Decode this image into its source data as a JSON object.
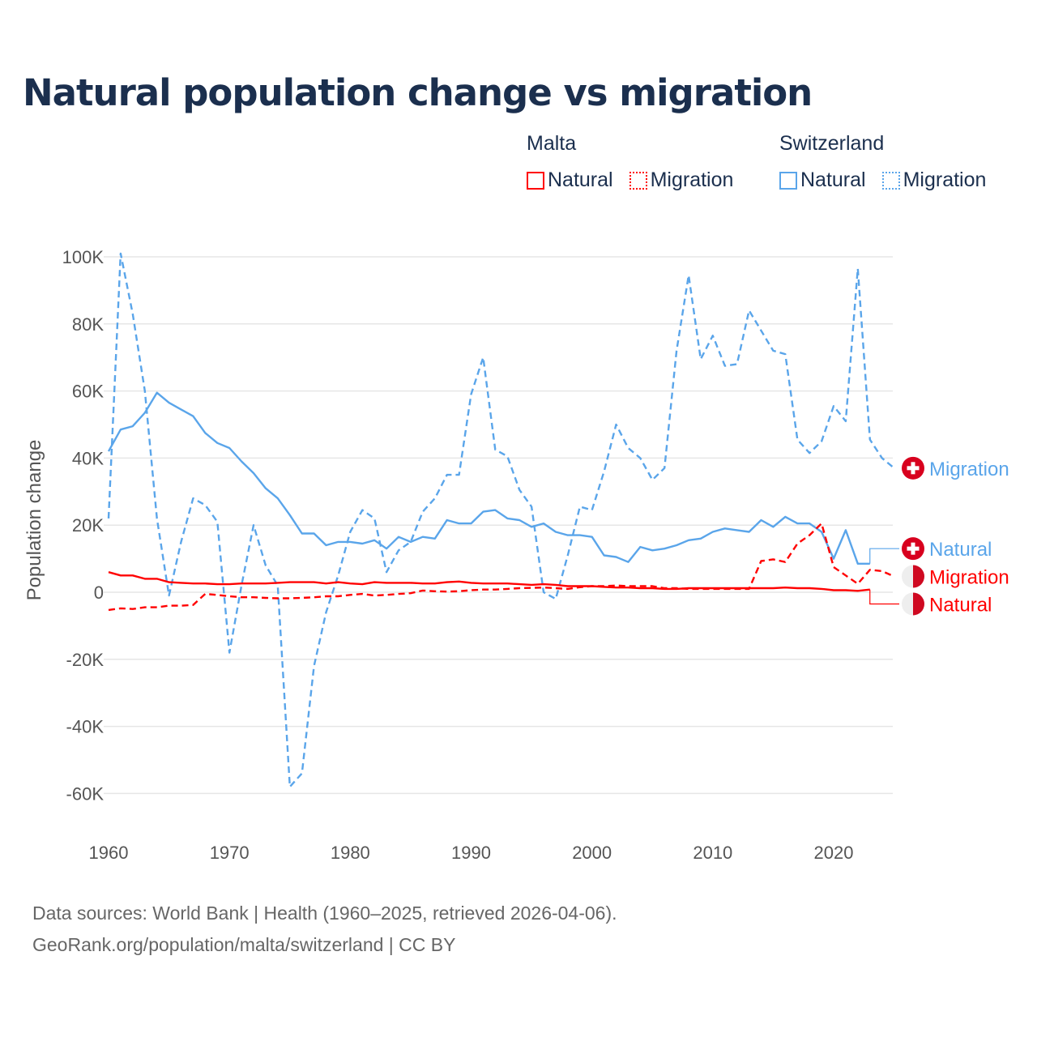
{
  "chart_data": {
    "type": "line",
    "title": "Natural population change vs migration",
    "xlabel": "",
    "ylabel": "Population change",
    "xlim": [
      1960,
      2025
    ],
    "ylim": [
      -70000,
      100000
    ],
    "x_ticks": [
      "1960",
      "1970",
      "1980",
      "1990",
      "2000",
      "2010",
      "2020"
    ],
    "y_ticks": [
      {
        "v": 100000,
        "label": "100K"
      },
      {
        "v": 80000,
        "label": "80K"
      },
      {
        "v": 60000,
        "label": "60K"
      },
      {
        "v": 40000,
        "label": "40K"
      },
      {
        "v": 20000,
        "label": "20K"
      },
      {
        "v": 0,
        "label": "0"
      },
      {
        "v": -20000,
        "label": "-20K"
      },
      {
        "v": -40000,
        "label": "-40K"
      },
      {
        "v": -60000,
        "label": "-60K"
      }
    ],
    "grid": true,
    "legend_placement": "top-right",
    "start_year": 1960,
    "series": [
      {
        "name": "Switzerland Migration",
        "country": "Switzerland",
        "kind": "Migration",
        "color": "#5aa5ea",
        "dashed": true,
        "end_label": "Migration",
        "label_value": 37000,
        "values": [
          22000,
          101000,
          83000,
          60000,
          22000,
          -1000,
          15000,
          28000,
          26000,
          21000,
          -18000,
          2000,
          20000,
          8000,
          2000,
          -58000,
          -54000,
          -22000,
          -6000,
          5000,
          18000,
          24500,
          22000,
          6000,
          12500,
          15000,
          24000,
          28000,
          35000,
          35000,
          59000,
          70000,
          42500,
          40500,
          30500,
          25500,
          0,
          -2000,
          11000,
          25500,
          24500,
          36000,
          50000,
          43000,
          40000,
          33500,
          37000,
          72000,
          94500,
          69500,
          76500,
          67500,
          68000,
          84000,
          78000,
          72000,
          71000,
          45500,
          41500,
          45000,
          55500,
          51000,
          96500,
          45500,
          40000,
          37000
        ]
      },
      {
        "name": "Switzerland Natural",
        "country": "Switzerland",
        "kind": "Natural",
        "color": "#5aa5ea",
        "dashed": false,
        "end_label": "Natural",
        "label_value": 13000,
        "values": [
          42000,
          48500,
          49500,
          53500,
          59500,
          56500,
          54500,
          52500,
          47500,
          44500,
          43000,
          39000,
          35500,
          31000,
          28000,
          23000,
          17500,
          17500,
          14000,
          15000,
          15000,
          14500,
          15500,
          13000,
          16500,
          15000,
          16500,
          16000,
          21500,
          20500,
          20500,
          24000,
          24500,
          22000,
          21500,
          19500,
          20500,
          18000,
          17000,
          17000,
          16500,
          11000,
          10500,
          9000,
          13500,
          12500,
          13000,
          14000,
          15500,
          16000,
          18000,
          19000,
          18500,
          18000,
          21500,
          19500,
          22500,
          20500,
          20500,
          18000,
          10000,
          18500,
          8500,
          8500
        ]
      },
      {
        "name": "Malta Migration",
        "country": "Malta",
        "kind": "Migration",
        "color": "#ff0000",
        "dashed": true,
        "end_label": "Migration",
        "label_value": 4700,
        "values": [
          -5300,
          -4800,
          -5000,
          -4500,
          -4500,
          -4000,
          -4000,
          -3800,
          -500,
          -800,
          -1200,
          -1500,
          -1500,
          -1700,
          -1800,
          -1800,
          -1700,
          -1500,
          -1200,
          -1200,
          -800,
          -500,
          -1000,
          -800,
          -500,
          -300,
          500,
          300,
          200,
          300,
          600,
          800,
          800,
          1000,
          1200,
          1300,
          1400,
          1200,
          1000,
          1500,
          1800,
          1800,
          2000,
          1800,
          1800,
          1800,
          1200,
          1200,
          1000,
          1000,
          1000,
          1000,
          1000,
          1000,
          9300,
          9800,
          9000,
          14500,
          17000,
          20500,
          7500,
          5000,
          2500,
          6700,
          6300,
          4700
        ]
      },
      {
        "name": "Malta Natural",
        "country": "Malta",
        "kind": "Natural",
        "color": "#ff0000",
        "dashed": false,
        "end_label": "Natural",
        "label_value": -3500,
        "values": [
          6000,
          5000,
          5000,
          4000,
          4000,
          3000,
          2800,
          2600,
          2600,
          2400,
          2400,
          2600,
          2600,
          2600,
          2800,
          3000,
          3000,
          3000,
          2600,
          3000,
          2600,
          2400,
          3000,
          2800,
          2800,
          2800,
          2600,
          2600,
          3000,
          3200,
          2800,
          2600,
          2600,
          2600,
          2400,
          2200,
          2400,
          2200,
          1800,
          1800,
          1800,
          1600,
          1400,
          1400,
          1200,
          1200,
          1000,
          1000,
          1200,
          1200,
          1200,
          1200,
          1200,
          1200,
          1200,
          1200,
          1400,
          1200,
          1200,
          1000,
          600,
          600,
          400,
          800
        ]
      }
    ]
  },
  "legend": {
    "groups": [
      {
        "country": "Malta",
        "items": [
          {
            "label": "Natural",
            "color": "#ff0000",
            "style": "solid"
          },
          {
            "label": "Migration",
            "color": "#ff0000",
            "style": "dotted"
          }
        ]
      },
      {
        "country": "Switzerland",
        "items": [
          {
            "label": "Natural",
            "color": "#5aa5ea",
            "style": "solid"
          },
          {
            "label": "Migration",
            "color": "#5aa5ea",
            "style": "dotted"
          }
        ]
      }
    ]
  },
  "icons": {
    "switzerland": "swiss-flag-icon",
    "malta": "malta-flag-icon"
  },
  "footer": {
    "line1": "Data sources: World Bank | Health (1960–2025, retrieved 2026-04-06).",
    "line2": "GeoRank.org/population/malta/switzerland | CC BY"
  }
}
